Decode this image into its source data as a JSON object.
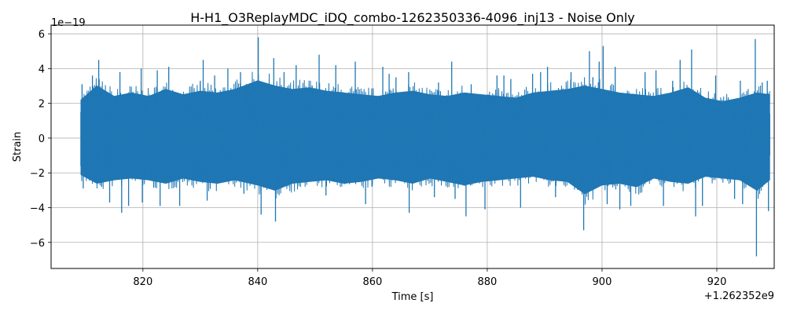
{
  "chart_data": {
    "type": "line",
    "title": "H-H1_O3ReplayMDC_iDQ_combo-1262350336-4096_inj13 - Noise Only",
    "xlabel": "Time [s]",
    "ylabel": "Strain",
    "x_offset_label": "+1.262352e9",
    "y_scale_label": "1e−19",
    "xlim": [
      804,
      930
    ],
    "ylim": [
      -7.5,
      6.5
    ],
    "x_ticks": [
      820,
      840,
      860,
      880,
      900,
      920
    ],
    "x_tick_labels": [
      "820",
      "840",
      "860",
      "880",
      "900",
      "920"
    ],
    "y_ticks": [
      -6,
      -4,
      -2,
      0,
      2,
      4,
      6
    ],
    "y_tick_labels": [
      "−6",
      "−4",
      "−2",
      "0",
      "2",
      "4",
      "6"
    ],
    "grid": true,
    "series": [
      {
        "color": "#1f77b4",
        "x_range": [
          809.2,
          929.2
        ],
        "band_upper": [
          [
            809.2,
            2.2
          ],
          [
            812.0,
            3.0
          ],
          [
            815.0,
            2.4
          ],
          [
            818.0,
            2.6
          ],
          [
            821.0,
            2.4
          ],
          [
            824.0,
            2.8
          ],
          [
            827.0,
            2.5
          ],
          [
            830.0,
            2.7
          ],
          [
            833.0,
            2.6
          ],
          [
            836.0,
            2.8
          ],
          [
            840.0,
            3.3
          ],
          [
            843.0,
            3.0
          ],
          [
            846.0,
            2.8
          ],
          [
            849.0,
            2.9
          ],
          [
            852.0,
            2.7
          ],
          [
            855.0,
            2.6
          ],
          [
            858.0,
            2.5
          ],
          [
            861.0,
            2.4
          ],
          [
            864.0,
            2.6
          ],
          [
            867.0,
            2.7
          ],
          [
            870.0,
            2.5
          ],
          [
            873.0,
            2.4
          ],
          [
            876.0,
            2.6
          ],
          [
            879.0,
            2.5
          ],
          [
            882.0,
            2.4
          ],
          [
            885.0,
            2.3
          ],
          [
            888.0,
            2.6
          ],
          [
            891.0,
            2.7
          ],
          [
            894.0,
            2.8
          ],
          [
            897.0,
            3.0
          ],
          [
            900.0,
            2.8
          ],
          [
            903.0,
            2.6
          ],
          [
            906.0,
            2.5
          ],
          [
            909.0,
            2.4
          ],
          [
            912.0,
            2.6
          ],
          [
            915.0,
            2.9
          ],
          [
            918.0,
            2.3
          ],
          [
            921.0,
            2.1
          ],
          [
            924.0,
            2.3
          ],
          [
            927.0,
            2.6
          ],
          [
            929.2,
            2.5
          ]
        ],
        "band_lower": [
          [
            809.2,
            -2.1
          ],
          [
            812.0,
            -2.6
          ],
          [
            815.0,
            -2.4
          ],
          [
            818.0,
            -2.3
          ],
          [
            821.0,
            -2.4
          ],
          [
            824.0,
            -2.6
          ],
          [
            827.0,
            -2.3
          ],
          [
            830.0,
            -2.5
          ],
          [
            833.0,
            -2.6
          ],
          [
            836.0,
            -2.4
          ],
          [
            840.0,
            -2.7
          ],
          [
            843.0,
            -3.0
          ],
          [
            846.0,
            -2.6
          ],
          [
            849.0,
            -2.5
          ],
          [
            852.0,
            -2.4
          ],
          [
            855.0,
            -2.6
          ],
          [
            858.0,
            -2.5
          ],
          [
            861.0,
            -2.3
          ],
          [
            864.0,
            -2.4
          ],
          [
            867.0,
            -2.6
          ],
          [
            870.0,
            -2.3
          ],
          [
            873.0,
            -2.5
          ],
          [
            876.0,
            -2.7
          ],
          [
            879.0,
            -2.5
          ],
          [
            882.0,
            -2.4
          ],
          [
            885.0,
            -2.3
          ],
          [
            888.0,
            -2.2
          ],
          [
            891.0,
            -2.4
          ],
          [
            894.0,
            -2.5
          ],
          [
            897.0,
            -3.2
          ],
          [
            900.0,
            -2.7
          ],
          [
            903.0,
            -2.6
          ],
          [
            906.0,
            -2.8
          ],
          [
            909.0,
            -2.3
          ],
          [
            912.0,
            -2.5
          ],
          [
            915.0,
            -2.6
          ],
          [
            918.0,
            -2.2
          ],
          [
            921.0,
            -2.3
          ],
          [
            924.0,
            -2.4
          ],
          [
            927.0,
            -3.0
          ],
          [
            929.2,
            -2.4
          ]
        ],
        "spikes": [
          [
            809.4,
            3.1
          ],
          [
            809.6,
            -2.9
          ],
          [
            811.2,
            3.6
          ],
          [
            812.3,
            4.5
          ],
          [
            812.8,
            -2.8
          ],
          [
            814.2,
            -3.7
          ],
          [
            816.0,
            3.8
          ],
          [
            816.3,
            -4.3
          ],
          [
            817.5,
            -3.9
          ],
          [
            819.7,
            4.0
          ],
          [
            819.9,
            -3.7
          ],
          [
            822.5,
            3.9
          ],
          [
            823.0,
            -3.9
          ],
          [
            824.5,
            4.1
          ],
          [
            826.4,
            -3.9
          ],
          [
            830.0,
            3.3
          ],
          [
            830.5,
            4.5
          ],
          [
            831.2,
            -3.6
          ],
          [
            832.5,
            3.6
          ],
          [
            834.8,
            4.0
          ],
          [
            837.0,
            3.8
          ],
          [
            837.6,
            -3.2
          ],
          [
            840.1,
            5.8
          ],
          [
            840.6,
            -4.4
          ],
          [
            842.8,
            4.6
          ],
          [
            843.1,
            -4.8
          ],
          [
            844.6,
            3.8
          ],
          [
            846.7,
            4.2
          ],
          [
            849.5,
            3.0
          ],
          [
            850.7,
            4.8
          ],
          [
            851.9,
            -3.3
          ],
          [
            853.6,
            4.2
          ],
          [
            857.0,
            4.4
          ],
          [
            858.8,
            -3.8
          ],
          [
            859.9,
            -2.8
          ],
          [
            861.8,
            4.1
          ],
          [
            862.9,
            3.7
          ],
          [
            864.1,
            3.5
          ],
          [
            866.3,
            3.8
          ],
          [
            866.4,
            -4.3
          ],
          [
            870.8,
            -3.4
          ],
          [
            871.5,
            3.2
          ],
          [
            873.8,
            4.4
          ],
          [
            874.4,
            -3.5
          ],
          [
            876.3,
            -4.5
          ],
          [
            877.2,
            3.1
          ],
          [
            879.6,
            -4.1
          ],
          [
            881.7,
            3.6
          ],
          [
            882.9,
            3.6
          ],
          [
            884.1,
            3.4
          ],
          [
            885.8,
            -4.0
          ],
          [
            887.9,
            3.7
          ],
          [
            889.3,
            3.8
          ],
          [
            890.5,
            4.1
          ],
          [
            891.9,
            -3.4
          ],
          [
            894.6,
            3.8
          ],
          [
            896.8,
            -5.3
          ],
          [
            897.8,
            5.0
          ],
          [
            898.4,
            3.5
          ],
          [
            899.5,
            4.4
          ],
          [
            900.2,
            5.3
          ],
          [
            900.9,
            -3.8
          ],
          [
            902.3,
            4.1
          ],
          [
            903.1,
            -4.1
          ],
          [
            905.0,
            -3.9
          ],
          [
            907.5,
            3.8
          ],
          [
            909.4,
            3.9
          ],
          [
            910.7,
            -3.9
          ],
          [
            912.3,
            3.3
          ],
          [
            913.6,
            4.5
          ],
          [
            915.6,
            5.1
          ],
          [
            916.3,
            -4.5
          ],
          [
            917.5,
            -3.9
          ],
          [
            919.8,
            3.6
          ],
          [
            923.1,
            -3.5
          ],
          [
            924.1,
            3.3
          ],
          [
            924.5,
            -3.8
          ],
          [
            926.7,
            5.7
          ],
          [
            926.9,
            -6.8
          ],
          [
            927.9,
            3.2
          ],
          [
            928.8,
            3.3
          ],
          [
            929.0,
            -4.2
          ]
        ]
      }
    ]
  }
}
